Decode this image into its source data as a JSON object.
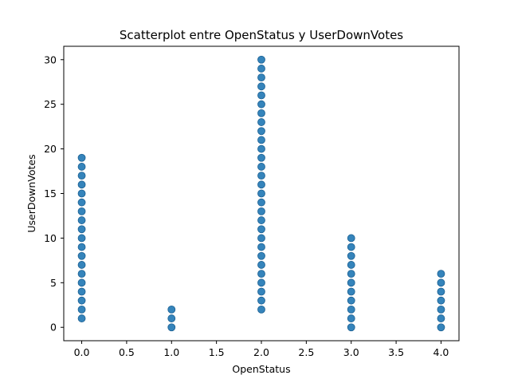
{
  "chart_data": {
    "type": "scatter",
    "title": "Scatterplot entre OpenStatus y UserDownVotes",
    "xlabel": "OpenStatus",
    "ylabel": "UserDownVotes",
    "xlim": [
      -0.2,
      4.2
    ],
    "ylim": [
      -1.5,
      31.5
    ],
    "xticks": [
      0.0,
      0.5,
      1.0,
      1.5,
      2.0,
      2.5,
      3.0,
      3.5,
      4.0
    ],
    "xtick_labels": [
      "0.0",
      "0.5",
      "1.0",
      "1.5",
      "2.0",
      "2.5",
      "3.0",
      "3.5",
      "4.0"
    ],
    "yticks": [
      0,
      5,
      10,
      15,
      20,
      25,
      30
    ],
    "ytick_labels": [
      "0",
      "5",
      "10",
      "15",
      "20",
      "25",
      "30"
    ],
    "grid": false,
    "legend": "none",
    "marker_color": "#1f77b4",
    "series": [
      {
        "x": [
          0,
          0,
          0,
          0,
          0,
          0,
          0,
          0,
          0,
          0,
          0,
          0,
          0,
          0,
          0,
          0,
          0,
          0,
          0,
          1,
          1,
          1,
          2,
          2,
          2,
          2,
          2,
          2,
          2,
          2,
          2,
          2,
          2,
          2,
          2,
          2,
          2,
          2,
          2,
          2,
          2,
          2,
          2,
          2,
          2,
          2,
          2,
          2,
          2,
          2,
          2,
          3,
          3,
          3,
          3,
          3,
          3,
          3,
          3,
          3,
          3,
          3,
          4,
          4,
          4,
          4,
          4,
          4,
          4
        ],
        "y": [
          1,
          2,
          3,
          4,
          5,
          6,
          7,
          8,
          9,
          10,
          11,
          12,
          13,
          14,
          15,
          16,
          17,
          18,
          19,
          0,
          1,
          2,
          2,
          3,
          4,
          5,
          6,
          7,
          8,
          9,
          10,
          11,
          12,
          13,
          14,
          15,
          16,
          17,
          18,
          19,
          20,
          21,
          22,
          23,
          24,
          25,
          26,
          27,
          28,
          29,
          30,
          0,
          1,
          2,
          3,
          4,
          5,
          6,
          7,
          8,
          9,
          10,
          0,
          1,
          2,
          3,
          4,
          5,
          6
        ]
      }
    ]
  }
}
